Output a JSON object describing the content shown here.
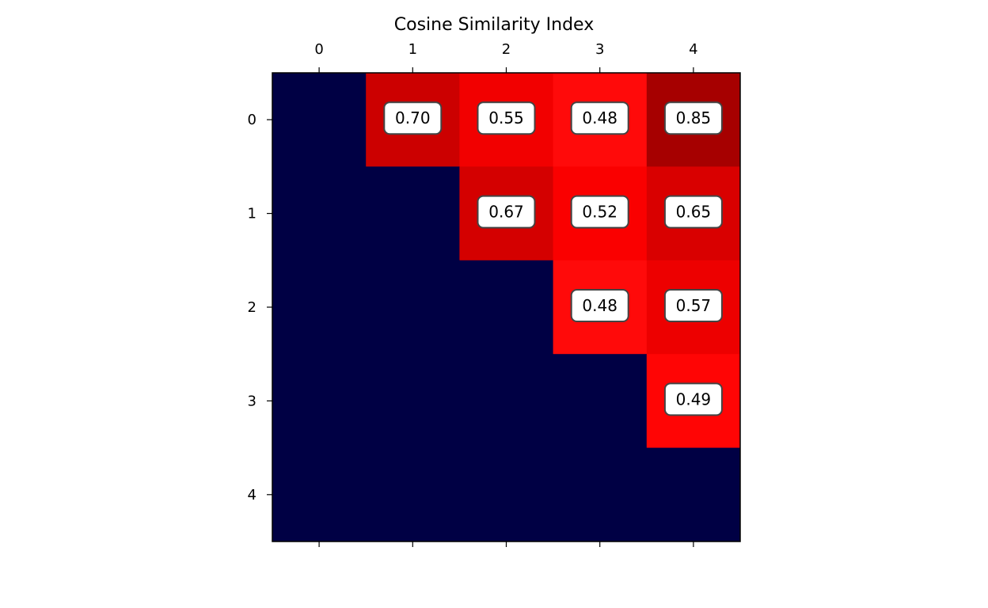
{
  "chart_data": {
    "type": "heatmap",
    "title": "Cosine Similarity Index",
    "x_ticks": [
      "0",
      "1",
      "2",
      "3",
      "4"
    ],
    "y_ticks": [
      "0",
      "1",
      "2",
      "3",
      "4"
    ],
    "xlabel": "",
    "ylabel": "",
    "cells": [
      {
        "row": 0,
        "col": 1,
        "value": 0.7,
        "label": "0.70"
      },
      {
        "row": 0,
        "col": 2,
        "value": 0.55,
        "label": "0.55"
      },
      {
        "row": 0,
        "col": 3,
        "value": 0.48,
        "label": "0.48"
      },
      {
        "row": 0,
        "col": 4,
        "value": 0.85,
        "label": "0.85"
      },
      {
        "row": 1,
        "col": 2,
        "value": 0.67,
        "label": "0.67"
      },
      {
        "row": 1,
        "col": 3,
        "value": 0.52,
        "label": "0.52"
      },
      {
        "row": 1,
        "col": 4,
        "value": 0.65,
        "label": "0.65"
      },
      {
        "row": 2,
        "col": 3,
        "value": 0.48,
        "label": "0.48"
      },
      {
        "row": 2,
        "col": 4,
        "value": 0.57,
        "label": "0.57"
      },
      {
        "row": 3,
        "col": 4,
        "value": 0.49,
        "label": "0.49"
      }
    ],
    "unlabeled_color": "#000044",
    "colormap": "seismic",
    "x_tick_position": "top and bottom",
    "grid": false
  }
}
